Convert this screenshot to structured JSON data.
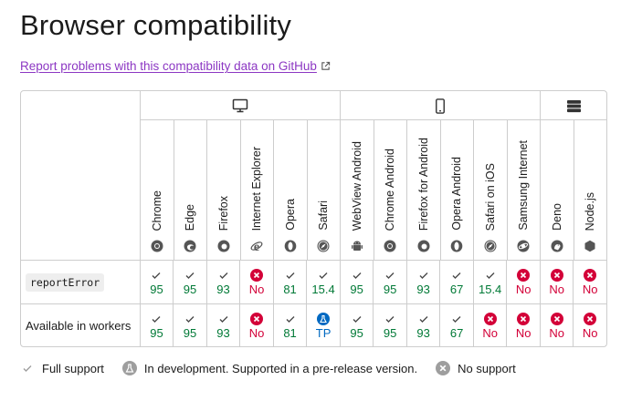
{
  "page": {
    "title": "Browser compatibility",
    "report_link": "Report problems with this compatibility data on GitHub"
  },
  "platforms": [
    {
      "icon": "desktop-icon",
      "span": 6
    },
    {
      "icon": "mobile-icon",
      "span": 6
    },
    {
      "icon": "server-icon",
      "span": 2
    }
  ],
  "browsers": [
    {
      "name": "Chrome",
      "icon": "chrome-logo-icon"
    },
    {
      "name": "Edge",
      "icon": "edge-logo-icon"
    },
    {
      "name": "Firefox",
      "icon": "firefox-logo-icon"
    },
    {
      "name": "Internet Explorer",
      "icon": "internet-explorer-logo-icon"
    },
    {
      "name": "Opera",
      "icon": "opera-logo-icon"
    },
    {
      "name": "Safari",
      "icon": "safari-logo-icon"
    },
    {
      "name": "WebView Android",
      "icon": "android-logo-icon"
    },
    {
      "name": "Chrome Android",
      "icon": "chrome-logo-icon"
    },
    {
      "name": "Firefox for Android",
      "icon": "firefox-logo-icon"
    },
    {
      "name": "Opera Android",
      "icon": "opera-logo-icon"
    },
    {
      "name": "Safari on iOS",
      "icon": "safari-logo-icon"
    },
    {
      "name": "Samsung Internet",
      "icon": "samsung-internet-logo-icon"
    },
    {
      "name": "Deno",
      "icon": "deno-logo-icon"
    },
    {
      "name": "Node.js",
      "icon": "nodejs-logo-icon"
    }
  ],
  "rows": [
    {
      "feature": "reportError",
      "is_code": true,
      "cells": [
        {
          "status": "yes",
          "text": "95"
        },
        {
          "status": "yes",
          "text": "95"
        },
        {
          "status": "yes",
          "text": "93"
        },
        {
          "status": "no",
          "text": "No"
        },
        {
          "status": "yes",
          "text": "81"
        },
        {
          "status": "yes",
          "text": "15.4"
        },
        {
          "status": "yes",
          "text": "95"
        },
        {
          "status": "yes",
          "text": "95"
        },
        {
          "status": "yes",
          "text": "93"
        },
        {
          "status": "yes",
          "text": "67"
        },
        {
          "status": "yes",
          "text": "15.4"
        },
        {
          "status": "no",
          "text": "No"
        },
        {
          "status": "no",
          "text": "No"
        },
        {
          "status": "no",
          "text": "No"
        }
      ]
    },
    {
      "feature": "Available in workers",
      "is_code": false,
      "cells": [
        {
          "status": "yes",
          "text": "95"
        },
        {
          "status": "yes",
          "text": "95"
        },
        {
          "status": "yes",
          "text": "93"
        },
        {
          "status": "no",
          "text": "No"
        },
        {
          "status": "yes",
          "text": "81"
        },
        {
          "status": "preview",
          "text": "TP"
        },
        {
          "status": "yes",
          "text": "95"
        },
        {
          "status": "yes",
          "text": "95"
        },
        {
          "status": "yes",
          "text": "93"
        },
        {
          "status": "yes",
          "text": "67"
        },
        {
          "status": "no",
          "text": "No"
        },
        {
          "status": "no",
          "text": "No"
        },
        {
          "status": "no",
          "text": "No"
        },
        {
          "status": "no",
          "text": "No"
        }
      ]
    }
  ],
  "legend": [
    {
      "status": "yes",
      "label": "Full support"
    },
    {
      "status": "preview",
      "label": "In development. Supported in a pre-release version."
    },
    {
      "status": "no",
      "label": "No support"
    }
  ],
  "colors": {
    "yes": "#007936",
    "no": "#d30038",
    "preview": "#0069c2",
    "link": "#8c37c3",
    "border": "#cdcdcd"
  }
}
